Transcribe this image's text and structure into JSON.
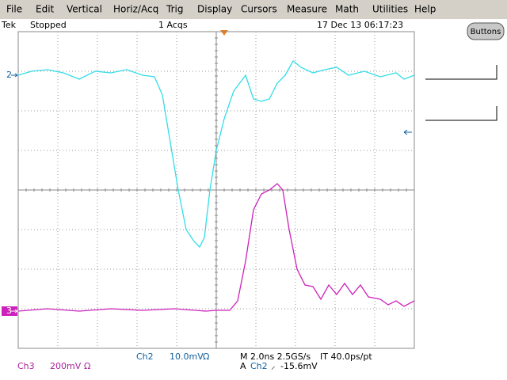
{
  "menu": [
    "File",
    "Edit",
    "Vertical",
    "Horiz/Acq",
    "Trig",
    "Display",
    "Cursors",
    "Measure",
    "Math",
    "Utilities",
    "Help"
  ],
  "status": {
    "brand": "Tek",
    "state": "Stopped",
    "acqs": "1 Acqs",
    "datetime": "17 Dec 13 06:17:23"
  },
  "buttons_label": "Buttons",
  "traces": [
    {
      "marker": "2",
      "color": "#33dde8",
      "x": [
        0,
        0.34,
        0.74,
        1.14,
        1.54,
        1.94,
        2.34,
        2.74,
        3.14,
        3.44,
        3.64,
        3.84,
        4.04,
        4.24,
        4.44,
        4.58,
        4.7,
        4.84,
        5,
        5.2,
        5.44,
        5.74,
        5.94,
        6.14,
        6.34,
        6.54,
        6.74,
        6.94,
        7.14,
        7.44,
        7.74,
        8.04,
        8.34,
        8.74,
        9.14,
        9.54,
        9.74,
        10
      ],
      "y": [
        2.9,
        3.0,
        3.04,
        2.96,
        2.8,
        3.0,
        2.96,
        3.04,
        2.9,
        2.86,
        2.4,
        1.2,
        0,
        -1.0,
        -1.3,
        -1.44,
        -1.2,
        0,
        1.0,
        1.8,
        2.5,
        2.9,
        2.3,
        2.24,
        2.3,
        2.7,
        2.9,
        3.26,
        3.1,
        2.96,
        3.04,
        3.1,
        2.9,
        3.0,
        2.86,
        2.96,
        2.8,
        2.9
      ]
    },
    {
      "marker": "3",
      "color": "#cc22bb",
      "x": [
        0,
        0.74,
        1.54,
        2.34,
        3.14,
        3.94,
        4.74,
        5,
        5.34,
        5.54,
        5.74,
        5.94,
        6.14,
        6.34,
        6.54,
        6.68,
        6.84,
        7.04,
        7.24,
        7.44,
        7.64,
        7.84,
        8.04,
        8.24,
        8.44,
        8.64,
        8.84,
        9.14,
        9.34,
        9.54,
        9.74,
        10
      ],
      "y": [
        -3.06,
        -3,
        -3.06,
        -3,
        -3.04,
        -3,
        -3.06,
        -3.04,
        -3.04,
        -2.8,
        -1.8,
        -0.5,
        -0.1,
        0,
        0.16,
        0,
        -1,
        -2,
        -2.4,
        -2.44,
        -2.76,
        -2.4,
        -2.64,
        -2.36,
        -2.64,
        -2.4,
        -2.7,
        -2.76,
        -2.9,
        -2.8,
        -2.94,
        -2.8
      ]
    }
  ],
  "readout": {
    "ch2": {
      "name": "Ch2",
      "scale": "10.0mV",
      "term": "Ω"
    },
    "ch3": {
      "name": "Ch3",
      "scale": "200mV",
      "term": "Ω"
    },
    "timebase": "M 2.0ns 2.5GS/s",
    "interp": "IT 40.0ps/pt",
    "trigger": {
      "mode": "A",
      "source": "Ch2",
      "slope": "⸝",
      "level": "-15.6mV"
    }
  }
}
